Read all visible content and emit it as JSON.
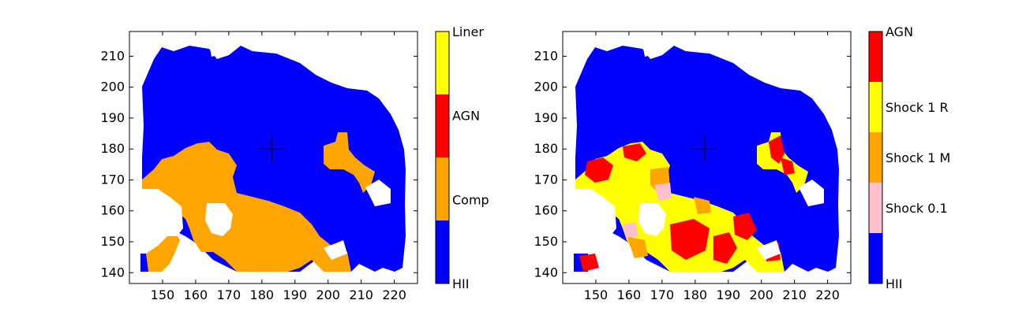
{
  "chart_data": [
    {
      "type": "heatmap",
      "title": "",
      "xlabel": "",
      "ylabel": "",
      "xlim": [
        140,
        227
      ],
      "ylim": [
        136.5,
        218
      ],
      "xticks": [
        150,
        160,
        170,
        180,
        190,
        200,
        210,
        220
      ],
      "yticks": [
        140,
        150,
        160,
        170,
        180,
        190,
        200,
        210
      ],
      "marker": {
        "type": "plus",
        "x": 183,
        "y": 180,
        "color": "#000000"
      },
      "colorbar": {
        "categories": [
          {
            "label": "HII",
            "color": "#0000ff"
          },
          {
            "label": "Comp",
            "color": "#ffa500"
          },
          {
            "label": "AGN",
            "color": "#ff0000"
          },
          {
            "label": "Liner",
            "color": "#ffff00"
          }
        ],
        "label_placement": "top-middle-bottom"
      },
      "regions": [
        {
          "category": "HII",
          "approx_extent_x": [
            144,
            223
          ],
          "approx_extent_y": [
            140,
            214
          ]
        },
        {
          "category": "Comp",
          "approx_extent_x": [
            144,
            212
          ],
          "approx_extent_y": [
            140,
            185
          ]
        }
      ]
    },
    {
      "type": "heatmap",
      "title": "",
      "xlabel": "",
      "ylabel": "",
      "xlim": [
        140,
        227
      ],
      "ylim": [
        136.5,
        218
      ],
      "xticks": [
        150,
        160,
        170,
        180,
        190,
        200,
        210,
        220
      ],
      "yticks": [
        140,
        150,
        160,
        170,
        180,
        190,
        200,
        210
      ],
      "marker": {
        "type": "plus",
        "x": 183,
        "y": 180,
        "color": "#000000"
      },
      "colorbar": {
        "categories": [
          {
            "label": "HII",
            "color": "#0000ff"
          },
          {
            "label": "Shock 0.1",
            "color": "#ffc0cb"
          },
          {
            "label": "Shock 1 M",
            "color": "#ffa500"
          },
          {
            "label": "Shock 1 R",
            "color": "#ffff00"
          },
          {
            "label": "AGN",
            "color": "#ff0000"
          }
        ],
        "label_placement": "segment-centers"
      },
      "regions": [
        {
          "category": "HII",
          "approx_extent_x": [
            144,
            223
          ],
          "approx_extent_y": [
            140,
            214
          ]
        },
        {
          "category": "Shock 1 R",
          "approx_extent_x": [
            145,
            212
          ],
          "approx_extent_y": [
            140,
            185
          ]
        },
        {
          "category": "AGN",
          "approx_extent_x": [
            145,
            212
          ],
          "approx_extent_y": [
            140,
            185
          ]
        },
        {
          "category": "Shock 0.1",
          "approx_extent_x": [
            155,
            180
          ],
          "approx_extent_y": [
            148,
            170
          ]
        }
      ]
    }
  ]
}
